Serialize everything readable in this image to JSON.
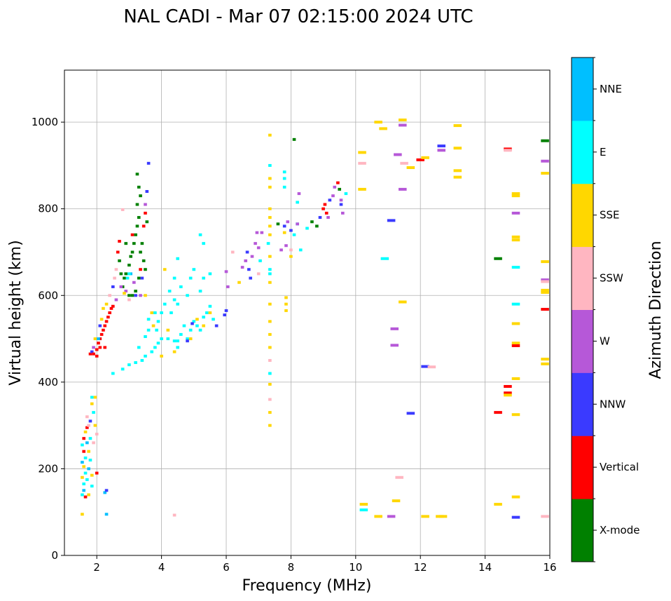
{
  "chart_data": {
    "type": "scatter",
    "title": "NAL CADI - Mar 07 02:15:00 2024 UTC",
    "xlabel": "Frequency (MHz)",
    "ylabel": "Virtual height (km)",
    "xlim": [
      1,
      16
    ],
    "ylim": [
      0,
      1120
    ],
    "xticks": [
      2,
      4,
      6,
      8,
      10,
      12,
      14,
      16
    ],
    "yticks": [
      0,
      200,
      400,
      600,
      800,
      1000
    ],
    "grid": true,
    "colorbar": {
      "label": "Azimuth Direction",
      "categories": [
        "X-mode",
        "Vertical",
        "NNW",
        "W",
        "SSW",
        "SSE",
        "E",
        "NNE"
      ],
      "colors": [
        "#008000",
        "#ff0000",
        "#3a3aff",
        "#b658d8",
        "#ffb6c1",
        "#ffd700",
        "#00ffff",
        "#00bfff"
      ]
    },
    "point_format": [
      "frequency_mhz",
      "height_km",
      "category_index"
    ],
    "points": [
      [
        1.55,
        95,
        5
      ],
      [
        1.55,
        140,
        6
      ],
      [
        1.6,
        150,
        7
      ],
      [
        1.6,
        165,
        6
      ],
      [
        1.55,
        180,
        5
      ],
      [
        1.65,
        190,
        6
      ],
      [
        1.6,
        205,
        5
      ],
      [
        1.55,
        215,
        7
      ],
      [
        1.65,
        225,
        6
      ],
      [
        1.6,
        240,
        1
      ],
      [
        1.55,
        255,
        6
      ],
      [
        1.7,
        260,
        7
      ],
      [
        1.6,
        270,
        1
      ],
      [
        1.65,
        285,
        5
      ],
      [
        1.7,
        295,
        1
      ],
      [
        1.75,
        300,
        4
      ],
      [
        1.8,
        310,
        2
      ],
      [
        1.7,
        175,
        6
      ],
      [
        1.75,
        200,
        7
      ],
      [
        1.8,
        220,
        6
      ],
      [
        1.75,
        240,
        5
      ],
      [
        1.85,
        160,
        6
      ],
      [
        1.85,
        185,
        5
      ],
      [
        1.8,
        270,
        6
      ],
      [
        1.9,
        330,
        6
      ],
      [
        1.85,
        350,
        5
      ],
      [
        1.95,
        365,
        5
      ],
      [
        1.95,
        300,
        5
      ],
      [
        2.0,
        190,
        1
      ],
      [
        1.9,
        260,
        4
      ],
      [
        1.75,
        140,
        5
      ],
      [
        1.65,
        135,
        1
      ],
      [
        1.85,
        365,
        6
      ],
      [
        1.7,
        320,
        4
      ],
      [
        2.25,
        145,
        7
      ],
      [
        2.3,
        150,
        2
      ],
      [
        2.3,
        95,
        7
      ],
      [
        2.0,
        280,
        4
      ],
      [
        1.8,
        465,
        1
      ],
      [
        1.85,
        470,
        2
      ],
      [
        1.9,
        480,
        3
      ],
      [
        2.0,
        475,
        1
      ],
      [
        2.05,
        490,
        1
      ],
      [
        2.1,
        500,
        1
      ],
      [
        2.15,
        510,
        1
      ],
      [
        2.1,
        480,
        1
      ],
      [
        2.2,
        520,
        1
      ],
      [
        2.25,
        530,
        1
      ],
      [
        2.3,
        540,
        1
      ],
      [
        2.35,
        550,
        1
      ],
      [
        2.4,
        560,
        1
      ],
      [
        2.45,
        570,
        1
      ],
      [
        2.5,
        575,
        1
      ],
      [
        2.3,
        580,
        5
      ],
      [
        2.2,
        570,
        5
      ],
      [
        2.4,
        600,
        4
      ],
      [
        2.5,
        620,
        2
      ],
      [
        2.55,
        640,
        4
      ],
      [
        2.6,
        660,
        4
      ],
      [
        2.65,
        700,
        1
      ],
      [
        2.7,
        725,
        1
      ],
      [
        2.1,
        530,
        2
      ],
      [
        1.95,
        500,
        5
      ],
      [
        2.0,
        460,
        1
      ],
      [
        2.05,
        500,
        7
      ],
      [
        2.25,
        480,
        1
      ],
      [
        2.15,
        545,
        5
      ],
      [
        1.9,
        465,
        1
      ],
      [
        2.8,
        620,
        0
      ],
      [
        2.85,
        640,
        0
      ],
      [
        2.9,
        650,
        0
      ],
      [
        3.0,
        670,
        0
      ],
      [
        3.05,
        690,
        0
      ],
      [
        3.1,
        700,
        0
      ],
      [
        3.15,
        720,
        0
      ],
      [
        3.2,
        740,
        0
      ],
      [
        3.25,
        760,
        0
      ],
      [
        3.3,
        780,
        0
      ],
      [
        3.35,
        700,
        0
      ],
      [
        3.4,
        720,
        0
      ],
      [
        3.45,
        680,
        0
      ],
      [
        3.5,
        660,
        0
      ],
      [
        3.3,
        640,
        0
      ],
      [
        3.2,
        610,
        0
      ],
      [
        3.1,
        600,
        0
      ],
      [
        3.25,
        810,
        0
      ],
      [
        3.3,
        850,
        0
      ],
      [
        3.25,
        880,
        0
      ],
      [
        3.35,
        830,
        0
      ],
      [
        2.7,
        680,
        0
      ],
      [
        2.75,
        650,
        0
      ],
      [
        2.9,
        720,
        0
      ],
      [
        3.0,
        600,
        0
      ],
      [
        2.95,
        640,
        6
      ],
      [
        2.9,
        610,
        3
      ],
      [
        2.75,
        620,
        3
      ],
      [
        3.15,
        630,
        3
      ],
      [
        3.2,
        600,
        2
      ],
      [
        3.35,
        600,
        3
      ],
      [
        3.4,
        640,
        2
      ],
      [
        3.45,
        760,
        1
      ],
      [
        3.5,
        790,
        1
      ],
      [
        3.55,
        840,
        2
      ],
      [
        3.6,
        905,
        2
      ],
      [
        3.5,
        810,
        3
      ],
      [
        3.55,
        770,
        0
      ],
      [
        2.85,
        605,
        5
      ],
      [
        3.05,
        650,
        7
      ],
      [
        3.0,
        590,
        4
      ],
      [
        3.35,
        660,
        1
      ],
      [
        3.1,
        740,
        1
      ],
      [
        2.6,
        590,
        3
      ],
      [
        2.5,
        420,
        6
      ],
      [
        2.8,
        430,
        6
      ],
      [
        3.0,
        440,
        6
      ],
      [
        3.2,
        445,
        6
      ],
      [
        3.4,
        450,
        6
      ],
      [
        3.5,
        460,
        6
      ],
      [
        3.7,
        470,
        6
      ],
      [
        3.8,
        480,
        6
      ],
      [
        3.9,
        490,
        6
      ],
      [
        4.0,
        500,
        6
      ],
      [
        3.85,
        520,
        6
      ],
      [
        3.9,
        540,
        6
      ],
      [
        4.0,
        560,
        6
      ],
      [
        4.1,
        580,
        6
      ],
      [
        3.8,
        560,
        6
      ],
      [
        3.6,
        520,
        6
      ],
      [
        3.5,
        505,
        6
      ],
      [
        3.3,
        480,
        6
      ],
      [
        4.2,
        500,
        6
      ],
      [
        4.4,
        495,
        6
      ],
      [
        4.5,
        480,
        6
      ],
      [
        4.6,
        510,
        6
      ],
      [
        4.7,
        530,
        6
      ],
      [
        4.8,
        500,
        6
      ],
      [
        4.9,
        520,
        6
      ],
      [
        5.0,
        540,
        6
      ],
      [
        5.1,
        530,
        6
      ],
      [
        5.2,
        520,
        6
      ],
      [
        5.3,
        550,
        6
      ],
      [
        5.4,
        560,
        6
      ],
      [
        5.5,
        575,
        6
      ],
      [
        4.3,
        560,
        6
      ],
      [
        4.5,
        580,
        6
      ],
      [
        4.6,
        620,
        6
      ],
      [
        4.8,
        600,
        6
      ],
      [
        4.9,
        640,
        6
      ],
      [
        5.0,
        660,
        6
      ],
      [
        5.2,
        610,
        6
      ],
      [
        5.3,
        640,
        6
      ],
      [
        5.5,
        650,
        6
      ],
      [
        4.4,
        640,
        6
      ],
      [
        4.5,
        685,
        6
      ],
      [
        5.2,
        740,
        6
      ],
      [
        5.3,
        720,
        6
      ],
      [
        4.1,
        660,
        5
      ],
      [
        4.9,
        500,
        5
      ],
      [
        5.1,
        545,
        5
      ],
      [
        5.3,
        530,
        5
      ],
      [
        5.5,
        560,
        5
      ],
      [
        4.0,
        460,
        5
      ],
      [
        4.2,
        520,
        5
      ],
      [
        4.5,
        495,
        6
      ],
      [
        4.8,
        495,
        2
      ],
      [
        5.6,
        545,
        6
      ],
      [
        5.7,
        530,
        2
      ],
      [
        4.95,
        535,
        2
      ],
      [
        4.4,
        590,
        6
      ],
      [
        4.25,
        610,
        6
      ],
      [
        3.75,
        530,
        5
      ],
      [
        3.7,
        560,
        5
      ],
      [
        3.5,
        600,
        5
      ],
      [
        3.6,
        545,
        6
      ],
      [
        5.95,
        555,
        2
      ],
      [
        6.0,
        565,
        2
      ],
      [
        6.05,
        620,
        3
      ],
      [
        6.0,
        655,
        3
      ],
      [
        6.2,
        700,
        4
      ],
      [
        6.4,
        630,
        5
      ],
      [
        6.5,
        665,
        3
      ],
      [
        6.6,
        680,
        3
      ],
      [
        6.65,
        700,
        2
      ],
      [
        6.7,
        660,
        2
      ],
      [
        6.75,
        640,
        2
      ],
      [
        6.8,
        690,
        3
      ],
      [
        6.9,
        720,
        3
      ],
      [
        6.95,
        745,
        3
      ],
      [
        7.0,
        710,
        3
      ],
      [
        7.05,
        680,
        6
      ],
      [
        7.1,
        745,
        3
      ],
      [
        7.3,
        720,
        6
      ],
      [
        7.35,
        690,
        5
      ],
      [
        7.6,
        765,
        0
      ],
      [
        7.7,
        705,
        3
      ],
      [
        7.8,
        760,
        2
      ],
      [
        7.85,
        715,
        3
      ],
      [
        7.9,
        770,
        3
      ],
      [
        8.0,
        750,
        2
      ],
      [
        8.1,
        740,
        6
      ],
      [
        8.2,
        765,
        6
      ],
      [
        8.3,
        705,
        6
      ],
      [
        8.5,
        755,
        6
      ],
      [
        8.65,
        770,
        0
      ],
      [
        8.8,
        760,
        0
      ],
      [
        8.9,
        780,
        2
      ],
      [
        9.0,
        800,
        1
      ],
      [
        9.05,
        810,
        1
      ],
      [
        9.1,
        790,
        1
      ],
      [
        9.15,
        780,
        3
      ],
      [
        9.2,
        820,
        2
      ],
      [
        9.3,
        830,
        3
      ],
      [
        9.35,
        850,
        3
      ],
      [
        9.45,
        860,
        1
      ],
      [
        9.5,
        845,
        0
      ],
      [
        9.55,
        820,
        3
      ],
      [
        9.55,
        810,
        2
      ],
      [
        9.7,
        835,
        6
      ],
      [
        9.6,
        790,
        3
      ],
      [
        8.2,
        815,
        6
      ],
      [
        8.25,
        835,
        3
      ],
      [
        8.2,
        765,
        3
      ],
      [
        7.8,
        850,
        6
      ],
      [
        7.8,
        870,
        6
      ],
      [
        7.8,
        885,
        6
      ],
      [
        8.1,
        960,
        0
      ],
      [
        7.35,
        800,
        5
      ],
      [
        7.35,
        780,
        5
      ],
      [
        7.35,
        760,
        5
      ],
      [
        7.35,
        740,
        5
      ],
      [
        7.35,
        970,
        5
      ],
      [
        7.35,
        870,
        5
      ],
      [
        7.35,
        850,
        5
      ],
      [
        7.35,
        900,
        6
      ],
      [
        7.35,
        660,
        6
      ],
      [
        7.35,
        650,
        6
      ],
      [
        7.35,
        630,
        5
      ],
      [
        7.35,
        580,
        5
      ],
      [
        7.35,
        540,
        5
      ],
      [
        7.35,
        510,
        5
      ],
      [
        7.35,
        480,
        5
      ],
      [
        7.35,
        450,
        4
      ],
      [
        7.35,
        420,
        6
      ],
      [
        7.35,
        395,
        5
      ],
      [
        7.35,
        360,
        4
      ],
      [
        7.35,
        330,
        5
      ],
      [
        7.35,
        300,
        5
      ],
      [
        7.85,
        595,
        5
      ],
      [
        7.85,
        580,
        5
      ],
      [
        7.85,
        565,
        5
      ],
      [
        7.8,
        745,
        5
      ],
      [
        8.0,
        690,
        5
      ],
      [
        8.0,
        705,
        4
      ],
      [
        7.0,
        650,
        4
      ],
      [
        10.2,
        930,
        5
      ],
      [
        10.2,
        905,
        4
      ],
      [
        10.2,
        845,
        5
      ],
      [
        10.7,
        1000,
        5
      ],
      [
        10.85,
        985,
        5
      ],
      [
        11.3,
        925,
        3
      ],
      [
        11.45,
        1005,
        5
      ],
      [
        11.45,
        993,
        3
      ],
      [
        11.5,
        905,
        4
      ],
      [
        11.7,
        895,
        5
      ],
      [
        11.45,
        845,
        3
      ],
      [
        12.0,
        913,
        1
      ],
      [
        12.15,
        918,
        5
      ],
      [
        12.65,
        945,
        2
      ],
      [
        12.65,
        935,
        3
      ],
      [
        13.15,
        992,
        5
      ],
      [
        13.15,
        940,
        5
      ],
      [
        13.15,
        888,
        5
      ],
      [
        13.15,
        873,
        5
      ],
      [
        11.1,
        773,
        2
      ],
      [
        10.9,
        685,
        6
      ],
      [
        11.45,
        585,
        5
      ],
      [
        11.2,
        523,
        3
      ],
      [
        11.2,
        485,
        3
      ],
      [
        12.15,
        436,
        2
      ],
      [
        12.35,
        435,
        4
      ],
      [
        11.7,
        328,
        2
      ],
      [
        14.4,
        685,
        0
      ],
      [
        14.7,
        938,
        1
      ],
      [
        14.7,
        935,
        4
      ],
      [
        14.95,
        835,
        5
      ],
      [
        14.95,
        830,
        5
      ],
      [
        14.95,
        790,
        3
      ],
      [
        14.95,
        735,
        5
      ],
      [
        14.95,
        728,
        5
      ],
      [
        14.95,
        665,
        6
      ],
      [
        14.95,
        580,
        6
      ],
      [
        14.95,
        535,
        5
      ],
      [
        14.95,
        490,
        5
      ],
      [
        14.95,
        484,
        1
      ],
      [
        14.95,
        408,
        5
      ],
      [
        14.95,
        325,
        5
      ],
      [
        14.95,
        135,
        5
      ],
      [
        14.95,
        88,
        2
      ],
      [
        14.7,
        390,
        1
      ],
      [
        14.7,
        375,
        1
      ],
      [
        14.7,
        370,
        5
      ],
      [
        14.4,
        330,
        1
      ],
      [
        14.4,
        118,
        5
      ],
      [
        15.85,
        957,
        0
      ],
      [
        15.85,
        910,
        3
      ],
      [
        15.85,
        882,
        5
      ],
      [
        15.85,
        678,
        5
      ],
      [
        15.85,
        636,
        3
      ],
      [
        15.85,
        632,
        4
      ],
      [
        15.85,
        612,
        5
      ],
      [
        15.85,
        607,
        5
      ],
      [
        15.85,
        568,
        1
      ],
      [
        15.85,
        453,
        5
      ],
      [
        15.85,
        442,
        5
      ],
      [
        15.85,
        90,
        4
      ],
      [
        10.25,
        118,
        5
      ],
      [
        10.25,
        105,
        6
      ],
      [
        10.7,
        90,
        5
      ],
      [
        11.1,
        90,
        3
      ],
      [
        11.25,
        126,
        5
      ],
      [
        11.35,
        180,
        4
      ],
      [
        12.15,
        90,
        5
      ],
      [
        12.6,
        90,
        5
      ],
      [
        12.7,
        90,
        5
      ],
      [
        4.4,
        93,
        4
      ],
      [
        4.4,
        470,
        5
      ],
      [
        2.8,
        798,
        4
      ],
      [
        3.0,
        650,
        6
      ]
    ]
  }
}
